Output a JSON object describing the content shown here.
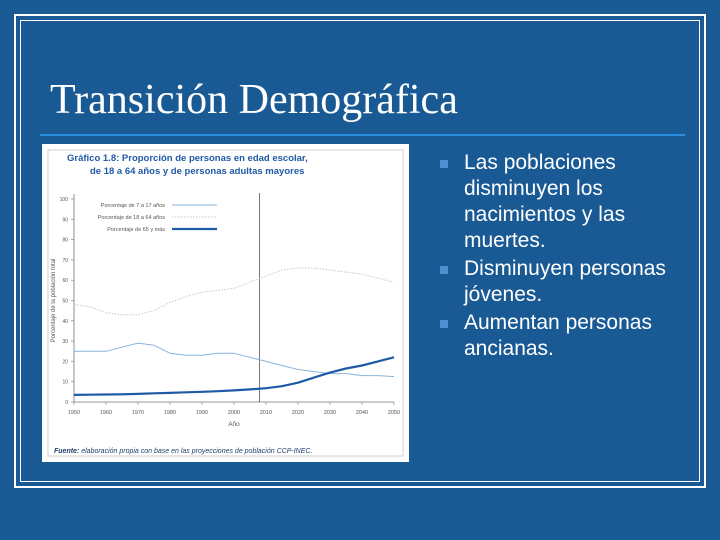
{
  "slide": {
    "title": "Transición Demográfica",
    "bullets": [
      {
        "text": "Las poblaciones disminuyen los nacimientos y las muertes."
      },
      {
        "text": "Disminuyen personas jóvenes."
      },
      {
        "text": "Aumentan personas ancianas."
      }
    ],
    "colors": {
      "background": "#1a5a94",
      "rule": "#2b8fe0",
      "bullet_marker": "#4f8fd0"
    }
  },
  "chart_data": {
    "type": "line",
    "title": "Gráfico 1.8: Proporción de personas en edad escolar, de 18 a 64 años y de personas adultas mayores",
    "xlabel": "Año",
    "ylabel": "Porcentaje de la población total",
    "xlim": [
      1950,
      2050
    ],
    "ylim": [
      0,
      100
    ],
    "x_ticks": [
      1950,
      1960,
      1970,
      1980,
      1990,
      2000,
      2010,
      2020,
      2030,
      2040,
      2050
    ],
    "y_ticks": [
      0,
      10,
      20,
      30,
      40,
      50,
      60,
      70,
      80,
      90,
      100
    ],
    "vertical_line_x": 2008,
    "legend_position": "top-left",
    "source": "Fuente: elaboración propia con base en las proyecciones de población CCP-INEC.",
    "series": [
      {
        "name": "Porcentaje de 7 a 17 años",
        "color": "#8ab4dc",
        "style": "solid-thin",
        "x": [
          1950,
          1955,
          1960,
          1965,
          1970,
          1975,
          1980,
          1985,
          1990,
          1995,
          2000,
          2005,
          2010,
          2015,
          2020,
          2025,
          2030,
          2035,
          2040,
          2045,
          2050
        ],
        "y": [
          25,
          25,
          25,
          27,
          29,
          28,
          24,
          23,
          23,
          24,
          24,
          22,
          20,
          18,
          16,
          15,
          14,
          14,
          13,
          13,
          12.5
        ]
      },
      {
        "name": "Porcentaje de 18 a 64 años",
        "color": "#b5c9dc",
        "style": "dotted",
        "x": [
          1950,
          1955,
          1960,
          1965,
          1970,
          1975,
          1980,
          1985,
          1990,
          1995,
          2000,
          2005,
          2010,
          2015,
          2020,
          2025,
          2030,
          2035,
          2040,
          2045,
          2050
        ],
        "y": [
          48,
          47,
          44,
          43,
          43,
          45,
          49,
          52,
          54,
          55,
          56,
          59,
          62,
          65,
          66,
          66,
          65,
          64,
          63,
          61,
          59
        ]
      },
      {
        "name": "Porcentaje de 65 y más",
        "color": "#1f5aa6",
        "style": "solid-thick",
        "x": [
          1950,
          1955,
          1960,
          1965,
          1970,
          1975,
          1980,
          1985,
          1990,
          1995,
          2000,
          2005,
          2010,
          2015,
          2020,
          2025,
          2030,
          2035,
          2040,
          2045,
          2050
        ],
        "y": [
          3.5,
          3.6,
          3.7,
          3.8,
          4,
          4.3,
          4.5,
          4.8,
          5,
          5.3,
          5.7,
          6.2,
          6.8,
          7.8,
          9.5,
          12,
          14.5,
          16.5,
          18,
          20,
          22
        ]
      }
    ]
  }
}
